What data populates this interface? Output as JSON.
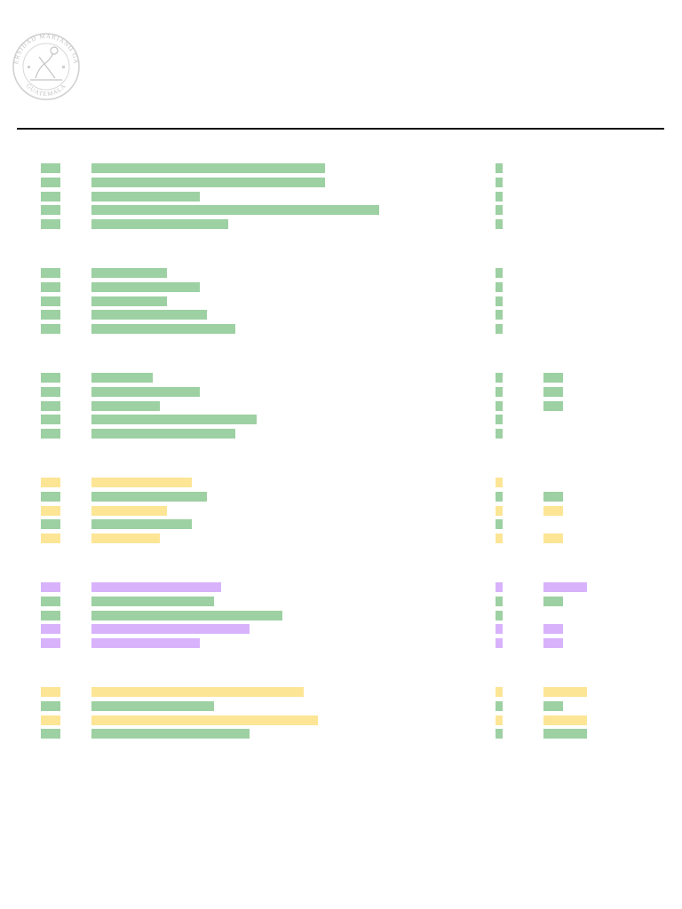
{
  "header": {
    "logo": "university-seal",
    "logo_text": "UNIVERSIDAD MARIANO GÁLVEZ DE GUATEMALA",
    "logo_color": "#c7c7c7"
  },
  "legend_colors": {
    "green": "#9dd0a2",
    "yellow": "#fde596",
    "purple": "#d8b3fb"
  },
  "groups": [
    {
      "rows": [
        {
          "color": "green",
          "name_fraction": 0.65,
          "extra": null
        },
        {
          "color": "green",
          "name_fraction": 0.65,
          "extra": null
        },
        {
          "color": "green",
          "name_fraction": 0.3,
          "extra": null
        },
        {
          "color": "green",
          "name_fraction": 0.8,
          "extra": null
        },
        {
          "color": "green",
          "name_fraction": 0.38,
          "extra": null
        }
      ]
    },
    {
      "rows": [
        {
          "color": "green",
          "name_fraction": 0.21,
          "extra": null
        },
        {
          "color": "green",
          "name_fraction": 0.3,
          "extra": null
        },
        {
          "color": "green",
          "name_fraction": 0.21,
          "extra": null
        },
        {
          "color": "green",
          "name_fraction": 0.32,
          "extra": null
        },
        {
          "color": "green",
          "name_fraction": 0.4,
          "extra": null
        }
      ]
    },
    {
      "rows": [
        {
          "color": "green",
          "name_fraction": 0.17,
          "extra": {
            "color": "green",
            "fraction": 0.45
          }
        },
        {
          "color": "green",
          "name_fraction": 0.3,
          "extra": {
            "color": "green",
            "fraction": 0.45
          }
        },
        {
          "color": "green",
          "name_fraction": 0.19,
          "extra": {
            "color": "green",
            "fraction": 0.45
          }
        },
        {
          "color": "green",
          "name_fraction": 0.46,
          "extra": null
        },
        {
          "color": "green",
          "name_fraction": 0.4,
          "extra": null
        }
      ]
    },
    {
      "rows": [
        {
          "color": "yellow",
          "name_fraction": 0.28,
          "extra": null
        },
        {
          "color": "green",
          "name_fraction": 0.32,
          "extra": {
            "color": "green",
            "fraction": 0.45
          }
        },
        {
          "color": "yellow",
          "name_fraction": 0.21,
          "extra": {
            "color": "yellow",
            "fraction": 0.45
          }
        },
        {
          "color": "green",
          "name_fraction": 0.28,
          "extra": null
        },
        {
          "color": "yellow",
          "name_fraction": 0.19,
          "extra": {
            "color": "yellow",
            "fraction": 0.45
          }
        }
      ]
    },
    {
      "rows": [
        {
          "color": "purple",
          "name_fraction": 0.36,
          "extra": {
            "color": "purple",
            "fraction": 1.0
          }
        },
        {
          "color": "green",
          "name_fraction": 0.34,
          "extra": {
            "color": "green",
            "fraction": 0.45
          }
        },
        {
          "color": "green",
          "name_fraction": 0.53,
          "extra": null
        },
        {
          "color": "purple",
          "name_fraction": 0.44,
          "extra": {
            "color": "purple",
            "fraction": 0.45
          }
        },
        {
          "color": "purple",
          "name_fraction": 0.3,
          "extra": {
            "color": "purple",
            "fraction": 0.45
          }
        }
      ]
    },
    {
      "rows": [
        {
          "color": "yellow",
          "name_fraction": 0.59,
          "extra": {
            "color": "yellow",
            "fraction": 1.0
          }
        },
        {
          "color": "green",
          "name_fraction": 0.34,
          "extra": {
            "color": "green",
            "fraction": 0.45
          }
        },
        {
          "color": "yellow",
          "name_fraction": 0.63,
          "extra": {
            "color": "yellow",
            "fraction": 1.0
          }
        },
        {
          "color": "green",
          "name_fraction": 0.44,
          "extra": {
            "color": "green",
            "fraction": 1.0
          }
        }
      ]
    }
  ]
}
